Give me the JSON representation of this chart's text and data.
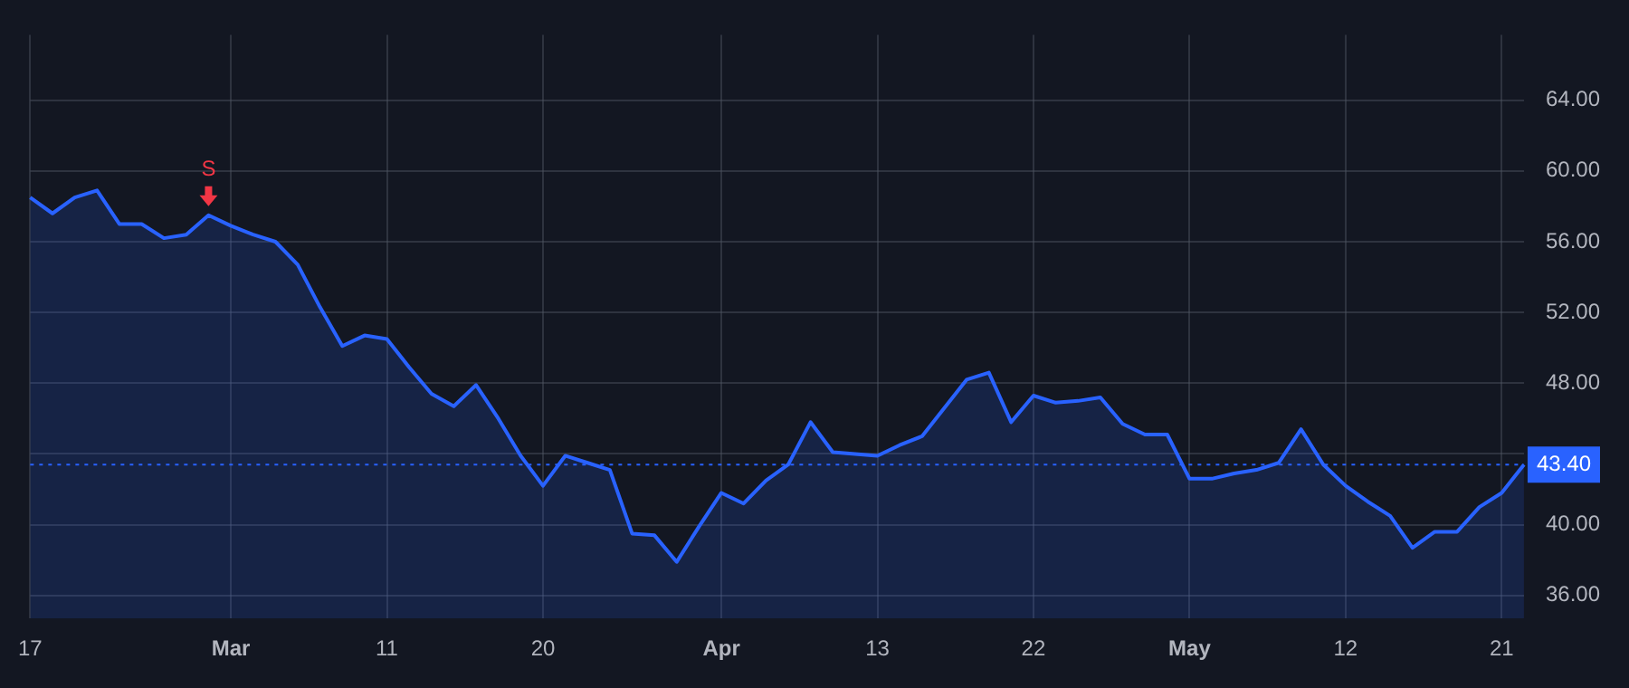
{
  "chart_data": {
    "type": "area",
    "categories": [
      "17",
      null,
      null,
      null,
      null,
      null,
      null,
      null,
      null,
      "Mar",
      null,
      null,
      null,
      null,
      null,
      null,
      "11",
      null,
      null,
      null,
      null,
      null,
      null,
      "20",
      null,
      null,
      null,
      null,
      null,
      null,
      null,
      "Apr",
      null,
      null,
      null,
      null,
      null,
      null,
      "13",
      null,
      null,
      null,
      null,
      null,
      null,
      "22",
      null,
      null,
      null,
      null,
      null,
      null,
      "May",
      null,
      null,
      null,
      null,
      null,
      null,
      "12",
      null,
      null,
      null,
      null,
      null,
      null,
      "21",
      null
    ],
    "series": [
      {
        "color": "#2962ff",
        "values": [
          58.5,
          57.6,
          58.5,
          58.9,
          57.0,
          57.0,
          56.2,
          56.4,
          57.5,
          56.9,
          56.4,
          56.0,
          54.7,
          52.3,
          50.1,
          50.7,
          50.5,
          48.9,
          47.4,
          46.7,
          47.9,
          46.0,
          43.9,
          42.2,
          43.9,
          43.5,
          43.1,
          39.5,
          39.4,
          37.9,
          39.9,
          41.8,
          41.2,
          42.5,
          43.4,
          45.8,
          44.1,
          44.0,
          43.9,
          44.5,
          45.0,
          46.6,
          48.2,
          48.6,
          45.8,
          47.3,
          46.9,
          47.0,
          47.2,
          45.7,
          45.1,
          45.1,
          42.6,
          42.6,
          42.9,
          43.1,
          43.5,
          45.4,
          43.4,
          42.2,
          41.3,
          40.5,
          38.7,
          39.6,
          39.6,
          41.0,
          41.8,
          43.4
        ]
      }
    ],
    "ylim": [
      34.7,
      67.7
    ],
    "yticks": [
      {
        "value": 36,
        "label": "36.00"
      },
      {
        "value": 40,
        "label": "40.00"
      },
      {
        "value": 44,
        "label": null
      },
      {
        "value": 48,
        "label": "48.00"
      },
      {
        "value": 52,
        "label": "52.00"
      },
      {
        "value": 56,
        "label": "56.00"
      },
      {
        "value": 60,
        "label": "60.00"
      },
      {
        "value": 64,
        "label": "64.00"
      }
    ],
    "grid": true,
    "ref_lines": [
      {
        "axis": "y",
        "value": 43.4,
        "label": "43.40",
        "color": "#2962ff",
        "line_style": "dotted"
      }
    ],
    "annotations": [
      {
        "text": "S",
        "y": 57.5
      }
    ]
  }
}
